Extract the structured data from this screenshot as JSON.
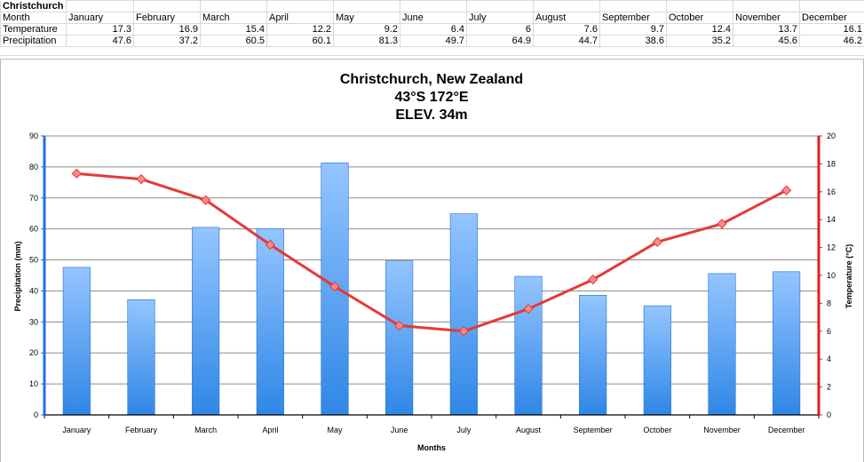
{
  "sheet": {
    "title": "Christchurch",
    "header_label": "Month",
    "months": [
      "January",
      "February",
      "March",
      "April",
      "May",
      "June",
      "July",
      "August",
      "September",
      "October",
      "November",
      "December"
    ],
    "rows": [
      {
        "label": "Temperature",
        "values": [
          "17.3",
          "16.9",
          "15.4",
          "12.2",
          "9.2",
          "6.4",
          "6",
          "7.6",
          "9.7",
          "12.4",
          "13.7",
          "16.1"
        ]
      },
      {
        "label": "Precipitation",
        "values": [
          "47.6",
          "37.2",
          "60.5",
          "60.1",
          "81.3",
          "49.7",
          "64.9",
          "44.7",
          "38.6",
          "35.2",
          "45.6",
          "46.2"
        ]
      }
    ]
  },
  "chart_data": {
    "type": "bar",
    "title_lines": [
      "Christchurch, New Zealand",
      "43°S 172°E",
      "ELEV. 34m"
    ],
    "categories": [
      "January",
      "February",
      "March",
      "April",
      "May",
      "June",
      "July",
      "August",
      "September",
      "October",
      "November",
      "December"
    ],
    "xlabel": "Months",
    "ylabel_left": "Precipitation (mm)",
    "ylabel_right": "Temperature (°C)",
    "ylim_left": [
      0,
      90
    ],
    "ylim_right": [
      0,
      20
    ],
    "yticks_left": [
      "0",
      "10",
      "20",
      "30",
      "40",
      "50",
      "60",
      "70",
      "80",
      "90"
    ],
    "yticks_right": [
      "0",
      "2",
      "4",
      "6",
      "8",
      "10",
      "12",
      "14",
      "16",
      "18",
      "20"
    ],
    "grid": true,
    "series": [
      {
        "name": "Precipitation",
        "type": "bar",
        "axis": "left",
        "values": [
          47.6,
          37.2,
          60.5,
          60.1,
          81.3,
          49.7,
          64.9,
          44.7,
          38.6,
          35.2,
          45.6,
          46.2
        ]
      },
      {
        "name": "Temperature",
        "type": "line",
        "axis": "right",
        "values": [
          17.3,
          16.9,
          15.4,
          12.2,
          9.2,
          6.4,
          6,
          7.6,
          9.7,
          12.4,
          13.7,
          16.1
        ]
      }
    ],
    "colors": {
      "bar_top": "#94c5ff",
      "bar_bottom": "#2f87e6",
      "bar_edge": "#1f6fd0",
      "line": "#e53935",
      "marker": "#ff8a8a",
      "left_axis": "#1e6fe8",
      "right_axis": "#e01e1e"
    }
  }
}
